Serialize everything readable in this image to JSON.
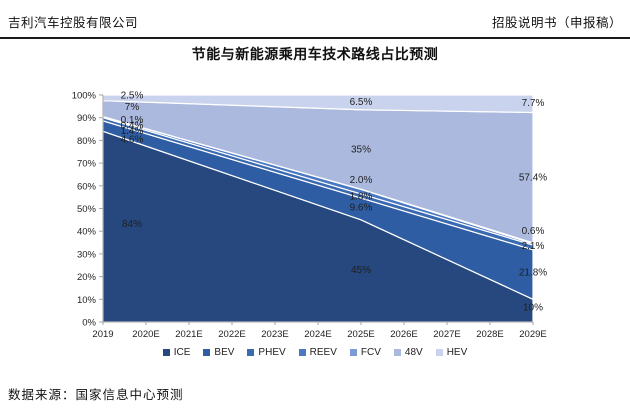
{
  "header": {
    "company": "吉利汽车控股有限公司",
    "doc_label": "招股说明书（申报稿）"
  },
  "title": "节能与新能源乘用车技术路线占比预测",
  "source": "数据来源：国家信息中心预测",
  "chart_data": {
    "type": "area",
    "stacked": true,
    "unit": "%",
    "title": "节能与新能源乘用车技术路线占比预测",
    "categories": [
      "2019",
      "2020E",
      "2021E",
      "2022E",
      "2023E",
      "2024E",
      "2025E",
      "2026E",
      "2027E",
      "2028E",
      "2029E"
    ],
    "anchor_categories": [
      "2019",
      "2025E",
      "2029E"
    ],
    "anchor_indices": [
      0,
      6,
      10
    ],
    "series": [
      {
        "name": "ICE",
        "color": "#26487e",
        "values_at_anchors": [
          84,
          45,
          10
        ],
        "labels": [
          "84%",
          "45%",
          "10%"
        ]
      },
      {
        "name": "BEV",
        "color": "#2f5da4",
        "values_at_anchors": [
          4.6,
          9.6,
          21.8
        ],
        "labels": [
          "4.6%",
          "9.6%",
          "21.8%"
        ]
      },
      {
        "name": "PHEV",
        "color": "#3a6ab1",
        "values_at_anchors": [
          1.4,
          1.8,
          2.1
        ],
        "labels": [
          "1.4%",
          "1.8%",
          "2.1%"
        ]
      },
      {
        "name": "REEV",
        "color": "#4a78c2",
        "values_at_anchors": [
          0.4,
          2.0,
          0.6
        ],
        "labels": [
          "0.4%",
          "2.0%",
          "0.6%"
        ]
      },
      {
        "name": "FCV",
        "color": "#7f9bd4",
        "values_at_anchors": [
          0.1,
          0.1,
          0.4
        ],
        "labels": [
          "0.1%",
          "",
          ""
        ]
      },
      {
        "name": "48V",
        "color": "#abb9de",
        "values_at_anchors": [
          7,
          35,
          57.4
        ],
        "labels": [
          "7%",
          "35%",
          "57.4%"
        ]
      },
      {
        "name": "HEV",
        "color": "#c9d3ed",
        "values_at_anchors": [
          2.5,
          6.5,
          7.7
        ],
        "labels": [
          "2.5%",
          "6.5%",
          "7.7%"
        ]
      }
    ],
    "y_axis": {
      "min": 0,
      "max": 100,
      "step": 10,
      "tick_labels": [
        "0%",
        "10%",
        "20%",
        "30%",
        "40%",
        "50%",
        "60%",
        "70%",
        "80%",
        "90%",
        "100%"
      ]
    },
    "grid": false,
    "legend": [
      "ICE",
      "BEV",
      "PHEV",
      "REEV",
      "FCV",
      "48V",
      "HEV"
    ],
    "legend_position": "bottom"
  }
}
